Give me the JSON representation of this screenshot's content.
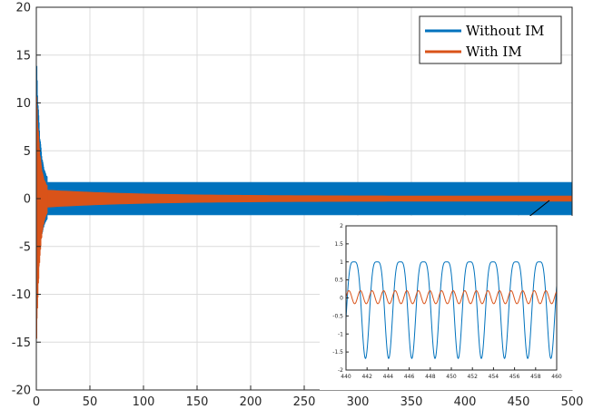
{
  "chart_data": [
    {
      "type": "line",
      "title": "",
      "xlabel": "",
      "ylabel": "",
      "xlim": [
        0,
        500
      ],
      "ylim": [
        -20,
        20
      ],
      "xticks": [
        0,
        50,
        100,
        150,
        200,
        250,
        300,
        350,
        400,
        450,
        500
      ],
      "yticks": [
        -20,
        -15,
        -10,
        -5,
        0,
        5,
        10,
        15,
        20
      ],
      "xtick_labels": [
        "0",
        "50",
        "100",
        "150",
        "200",
        "250",
        "300",
        "350",
        "400",
        "450",
        "500"
      ],
      "ytick_labels": [
        "-20",
        "-15",
        "-10",
        "-5",
        "0",
        "5",
        "10",
        "15",
        "20"
      ],
      "grid": true,
      "legend": "top-right",
      "series": [
        {
          "name": "Without IM",
          "color": "#0072BD",
          "transient": {
            "t_end": 10,
            "max": 15.8,
            "min": -12.8
          },
          "steady": {
            "upper": 1.7,
            "lower": -1.7,
            "from": 10,
            "to": 500
          }
        },
        {
          "name": "With IM",
          "color": "#D95319",
          "transient": {
            "t_end": 10,
            "max": 12.2,
            "min": -16
          },
          "steady": {
            "upper": 0.9,
            "lower": -0.9,
            "from": 10,
            "to": 500,
            "decay_to": 0.3
          }
        }
      ]
    },
    {
      "type": "line",
      "title": "",
      "role": "inset-zoom",
      "xlim": [
        440,
        460
      ],
      "ylim": [
        -2,
        2
      ],
      "xticks": [
        440,
        442,
        444,
        446,
        448,
        450,
        452,
        454,
        456,
        458,
        460
      ],
      "yticks": [
        -2,
        -1.5,
        -1,
        -0.5,
        0,
        0.5,
        1,
        1.5,
        2
      ],
      "xtick_labels": [
        "440",
        "442",
        "444",
        "446",
        "448",
        "450",
        "452",
        "454",
        "456",
        "458",
        "460"
      ],
      "ytick_labels": [
        "-2",
        "-1.5",
        "-1",
        "-0.5",
        "0",
        "0.5",
        "1",
        "1.5",
        "2"
      ],
      "grid": false,
      "series": [
        {
          "name": "Without IM",
          "color": "#0072BD",
          "pattern": {
            "period": 2.2,
            "amplitudes": [
              1.68,
              1.0
            ],
            "min": -1.68
          }
        },
        {
          "name": "With IM",
          "color": "#D95319",
          "pattern": {
            "period": 1.1,
            "amplitude": 0.18,
            "offset": 0.02
          }
        }
      ]
    }
  ]
}
